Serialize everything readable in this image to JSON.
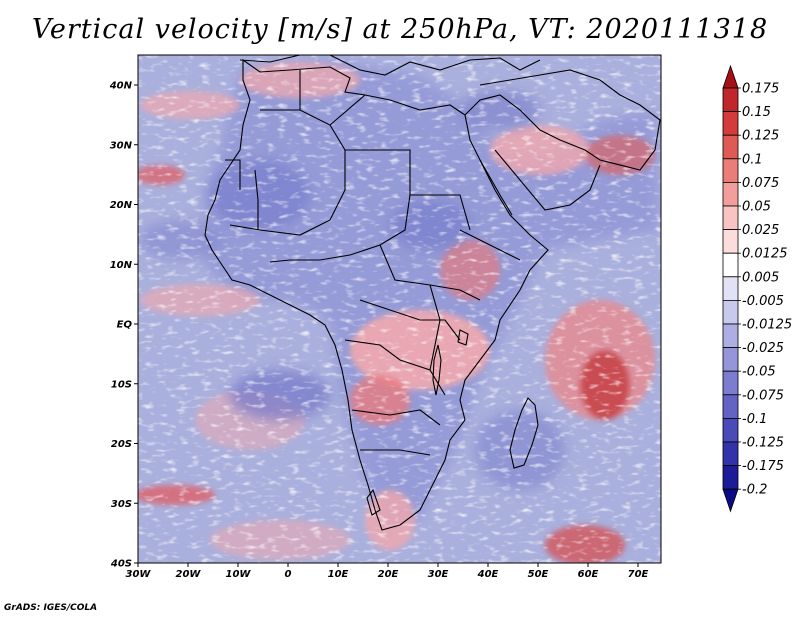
{
  "title": "Vertical velocity [m/s] at 250hPa, VT: 2020111318",
  "footer": "GrADS: IGES/COLA",
  "axes": {
    "lat_labels": [
      "40N",
      "30N",
      "20N",
      "10N",
      "EQ",
      "10S",
      "20S",
      "30S",
      "40S"
    ],
    "lon_labels": [
      "30W",
      "20W",
      "10W",
      "0",
      "10E",
      "20E",
      "30E",
      "40E",
      "50E",
      "60E",
      "70E"
    ]
  },
  "colorbar": {
    "levels": [
      "0.175",
      "0.15",
      "0.125",
      "0.1",
      "0.075",
      "0.05",
      "0.025",
      "0.0125",
      "0.005",
      "-0.005",
      "-0.0125",
      "-0.025",
      "-0.05",
      "-0.075",
      "-0.1",
      "-0.125",
      "-0.175",
      "-0.2"
    ],
    "colors": [
      "#a50f15",
      "#c0262c",
      "#d43b3b",
      "#e05a55",
      "#ea7d78",
      "#f29f9b",
      "#f8c3c0",
      "#fbdedc",
      "#ffffff",
      "#e2e2f6",
      "#c9c9ee",
      "#aeaee4",
      "#9595da",
      "#7c7cd0",
      "#6363c5",
      "#4a4ab9",
      "#3232ab",
      "#1c1c99",
      "#0b0b85"
    ]
  },
  "field_colors": {
    "background": "#aab0dd",
    "land_blue": "#8f94d6",
    "red_light": "#f1a8ae",
    "red_strong": "#c63b3f",
    "white": "#ffffff",
    "border": "#000000"
  }
}
